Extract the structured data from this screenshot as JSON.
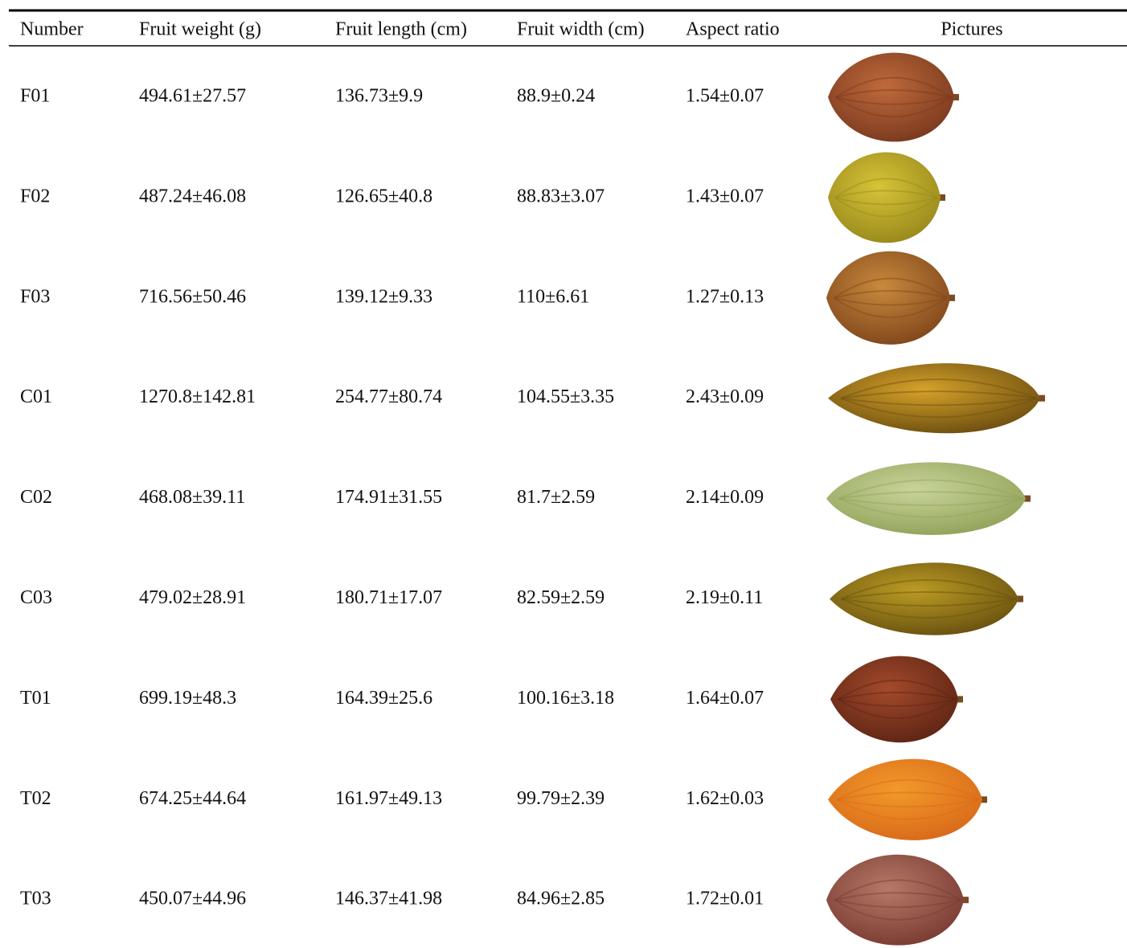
{
  "table": {
    "header": [
      "Number",
      "Fruit weight (g)",
      "Fruit length (cm)",
      "Fruit width (cm)",
      "Aspect ratio",
      "Pictures"
    ],
    "rows": [
      [
        "F01",
        "494.61±27.57",
        "136.73±9.9",
        "88.9±0.24",
        "1.54±0.07"
      ],
      [
        "F02",
        "487.24±46.08",
        "126.65±40.8",
        "88.83±3.07",
        "1.43±0.07"
      ],
      [
        "F03",
        "716.56±50.46",
        "139.12±9.33",
        "110±6.61",
        "1.27±0.13"
      ],
      [
        "C01",
        "1270.8±142.81",
        "254.77±80.74",
        "104.55±3.35",
        "2.43±0.09"
      ],
      [
        "C02",
        "468.08±39.11",
        "174.91±31.55",
        "81.7±2.59",
        "2.14±0.09"
      ],
      [
        "C03",
        "479.02±28.91",
        "180.71±17.07",
        "82.59±2.59",
        "2.19±0.11"
      ],
      [
        "T01",
        "699.19±48.3",
        "164.39±25.6",
        "100.16±3.18",
        "1.64±0.07"
      ],
      [
        "T02",
        "674.25±44.64",
        "161.97±49.13",
        "99.79±2.39",
        "1.62±0.03"
      ],
      [
        "T03",
        "450.07±44.96",
        "146.37±41.98",
        "84.96±2.85",
        "1.72±0.01"
      ]
    ]
  }
}
